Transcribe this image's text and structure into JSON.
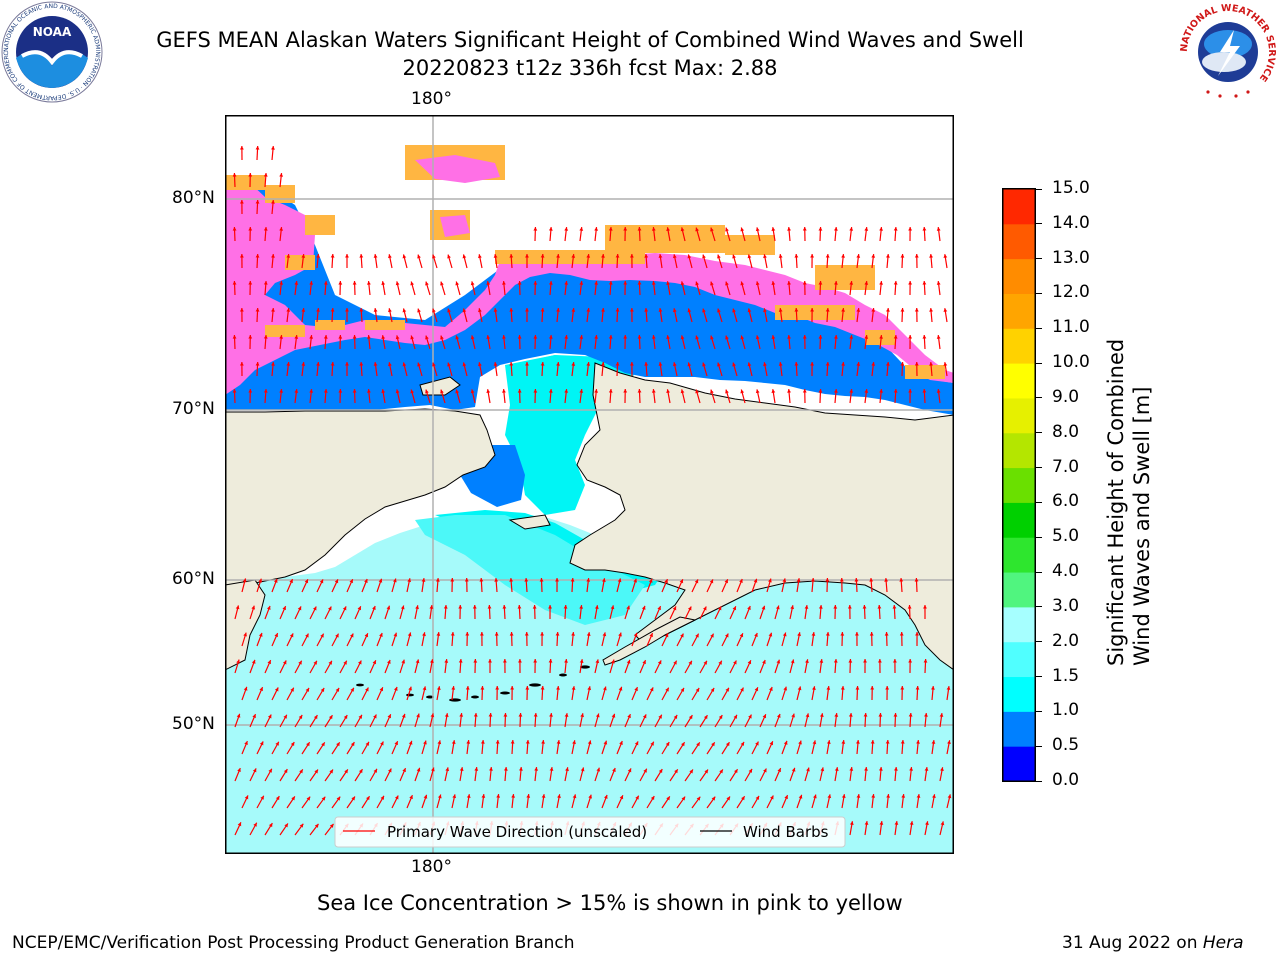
{
  "header": {
    "title_line1": "GEFS MEAN Alaskan Waters Significant Height of Combined Wind Waves and Swell",
    "title_line2": "20220823 t12z 336h fcst   Max: 2.88",
    "left_logo_text": "NOAA",
    "left_logo_ring": "NATIONAL OCEANIC AND ATMOSPHERIC ADMINISTRATION · U.S. DEPARTMENT OF COMMERCE",
    "right_logo_ring": "NATIONAL WEATHER SERVICE"
  },
  "map": {
    "lon_label_top": "180°",
    "lon_label_bottom": "180°",
    "lat_labels": [
      "80°N",
      "70°N",
      "60°N",
      "50°N"
    ],
    "legend": {
      "wave_direction": "Primary Wave Direction (unscaled)",
      "wind_barbs": "Wind Barbs"
    },
    "colors": {
      "land": "#eeecdc",
      "ocean_light": "#a6fafa",
      "ocean_cyan": "#00f5f5",
      "ocean_blue": "#0080ff",
      "ice_pink": "#ff70e6",
      "ice_orange": "#ffb642",
      "wave_arrow": "#ff0000",
      "wind_barb": "#000000"
    }
  },
  "colorbar": {
    "label_line1": "Significant Height of Combined",
    "label_line2": "Wind Waves and Swell [m]",
    "ticks": [
      "0.0",
      "0.5",
      "1.0",
      "1.5",
      "2.0",
      "3.0",
      "4.0",
      "5.0",
      "6.0",
      "7.0",
      "8.0",
      "9.0",
      "10.0",
      "11.0",
      "12.0",
      "13.0",
      "14.0",
      "15.0"
    ],
    "colors": [
      "#0000ff",
      "#0080ff",
      "#00ffff",
      "#50ffff",
      "#a6ffff",
      "#50f57f",
      "#2ee62e",
      "#00d000",
      "#6ae000",
      "#b4e600",
      "#e6f000",
      "#ffff00",
      "#ffd200",
      "#ffa500",
      "#ff8c00",
      "#ff5a00",
      "#ff2800"
    ]
  },
  "caption": "Sea Ice Concentration > 15% is shown in pink to yellow",
  "footer": {
    "left": "NCEP/EMC/Verification Post Processing Product Generation Branch",
    "right_date": "31 Aug 2022 on",
    "right_host": "Hera"
  }
}
